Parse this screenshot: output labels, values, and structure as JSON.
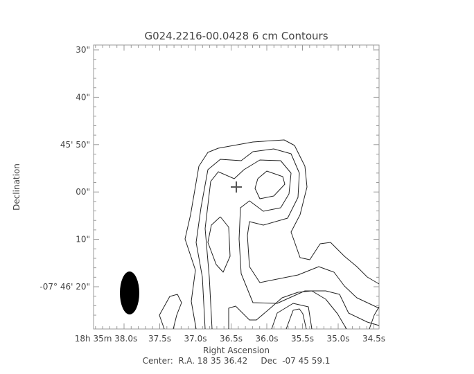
{
  "chart_data": {
    "type": "contour",
    "title": "G024.2216-00.0428 6 cm Contours",
    "xlabel": "Right Ascension",
    "ylabel": "Declination",
    "center_text": "Center:  R.A. 18 35 36.42     Dec  -07 45 59.1",
    "x_ticks": [
      {
        "label": "18h 35m 38.0s",
        "ra_s": 38.0
      },
      {
        "label": "37.5s",
        "ra_s": 37.5
      },
      {
        "label": "37.0s",
        "ra_s": 37.0
      },
      {
        "label": "36.5s",
        "ra_s": 36.5
      },
      {
        "label": "36.0s",
        "ra_s": 36.0
      },
      {
        "label": "35.5s",
        "ra_s": 35.5
      },
      {
        "label": "35.0s",
        "ra_s": 35.0
      },
      {
        "label": "34.5s",
        "ra_s": 34.5
      }
    ],
    "y_ticks": [
      {
        "label": "30\"",
        "dec_arcsec": 30
      },
      {
        "label": "40\"",
        "dec_arcsec": 40
      },
      {
        "label": "45' 50\"",
        "dec_arcsec": 50
      },
      {
        "label": "00\"",
        "dec_arcsec": 60
      },
      {
        "label": "10\"",
        "dec_arcsec": 70
      },
      {
        "label": "-07° 46' 20\"",
        "dec_arcsec": 80
      }
    ],
    "marker": "plus",
    "beam": "filled-ellipse",
    "line_color": "#222222",
    "axis_color": "#999999"
  }
}
